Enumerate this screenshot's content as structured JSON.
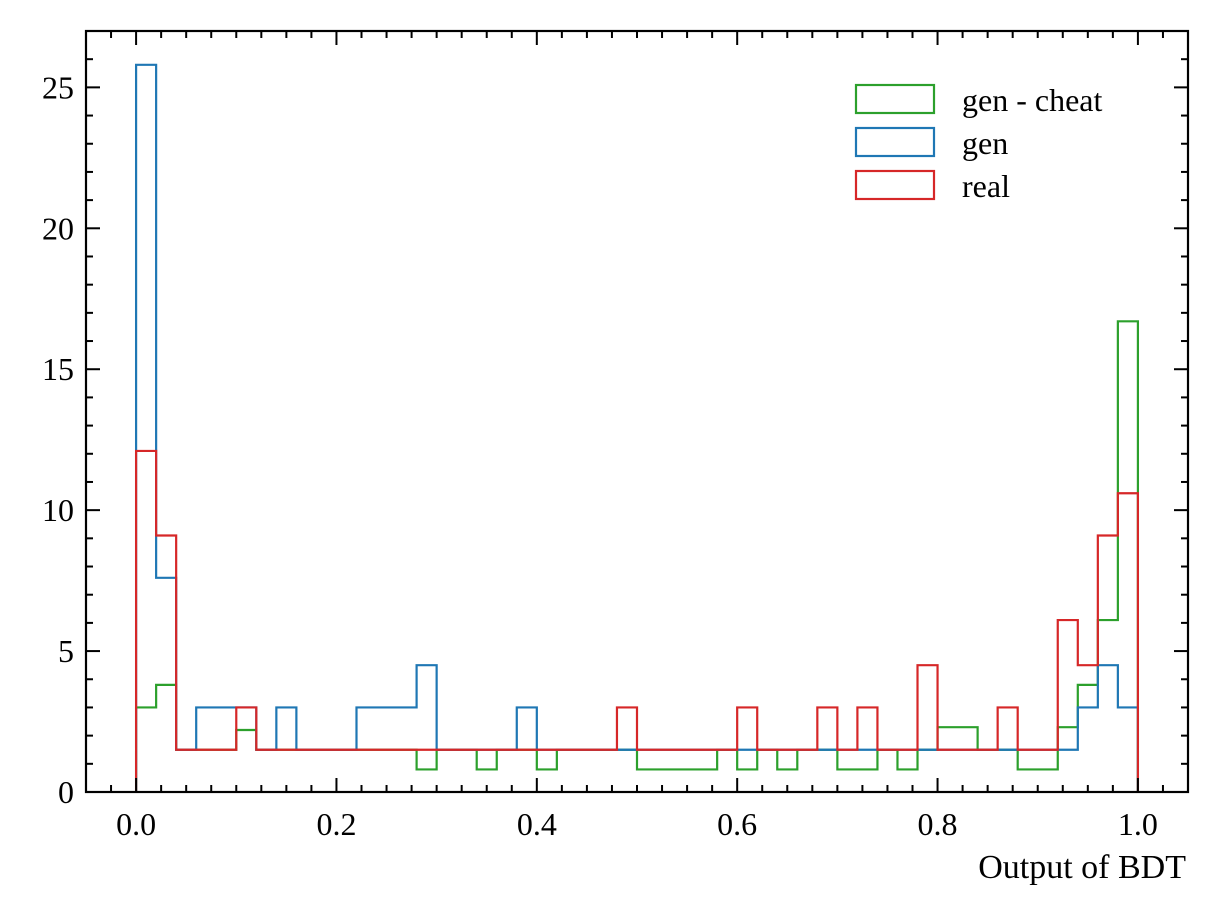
{
  "chart_data": {
    "type": "histogram",
    "title": "",
    "xlabel": "Output of BDT",
    "ylabel": "",
    "xlim": [
      -0.05,
      1.05
    ],
    "ylim": [
      0,
      27
    ],
    "xticks": [
      "0.0",
      "0.2",
      "0.4",
      "0.6",
      "0.8",
      "1.0"
    ],
    "yticks": [
      "0",
      "5",
      "10",
      "15",
      "20",
      "25"
    ],
    "grid": false,
    "legend_position": "top-right",
    "bin_edges": [
      0.0,
      0.02,
      0.04,
      0.06,
      0.08,
      0.1,
      0.12,
      0.14,
      0.16,
      0.18,
      0.2,
      0.22,
      0.24,
      0.26,
      0.28,
      0.3,
      0.32,
      0.34,
      0.36,
      0.38,
      0.4,
      0.42,
      0.44,
      0.46,
      0.48,
      0.5,
      0.52,
      0.54,
      0.56,
      0.58,
      0.6,
      0.62,
      0.64,
      0.66,
      0.68,
      0.7,
      0.72,
      0.74,
      0.76,
      0.78,
      0.8,
      0.82,
      0.84,
      0.86,
      0.88,
      0.9,
      0.92,
      0.94,
      0.96,
      0.98,
      1.0
    ],
    "series": [
      {
        "name": "gen - cheat",
        "color": "#2ca02c",
        "values": [
          3.0,
          3.8,
          1.5,
          1.5,
          1.5,
          2.2,
          1.5,
          1.5,
          1.5,
          1.5,
          1.5,
          1.5,
          1.5,
          1.5,
          0.8,
          1.5,
          1.5,
          0.8,
          1.5,
          1.5,
          0.8,
          1.5,
          1.5,
          1.5,
          1.5,
          0.8,
          0.8,
          0.8,
          0.8,
          1.5,
          0.8,
          1.5,
          0.8,
          1.5,
          1.5,
          0.8,
          0.8,
          1.5,
          0.8,
          1.5,
          2.3,
          2.3,
          1.5,
          1.5,
          0.8,
          0.8,
          2.3,
          3.8,
          6.1,
          16.7
        ]
      },
      {
        "name": "gen",
        "color": "#1f77b4",
        "values": [
          25.8,
          7.6,
          1.5,
          3.0,
          3.0,
          3.0,
          1.5,
          3.0,
          1.5,
          1.5,
          1.5,
          3.0,
          3.0,
          3.0,
          4.5,
          1.5,
          1.5,
          1.5,
          1.5,
          3.0,
          1.5,
          1.5,
          1.5,
          1.5,
          1.5,
          1.5,
          1.5,
          1.5,
          1.5,
          1.5,
          1.5,
          1.5,
          1.5,
          1.5,
          1.5,
          1.5,
          1.5,
          1.5,
          1.5,
          1.5,
          1.5,
          1.5,
          1.5,
          1.5,
          1.5,
          1.5,
          1.5,
          3.0,
          4.5,
          3.0
        ]
      },
      {
        "name": "real",
        "color": "#d62728",
        "values": [
          12.1,
          9.1,
          1.5,
          1.5,
          1.5,
          3.0,
          1.5,
          1.5,
          1.5,
          1.5,
          1.5,
          1.5,
          1.5,
          1.5,
          1.5,
          1.5,
          1.5,
          1.5,
          1.5,
          1.5,
          1.5,
          1.5,
          1.5,
          1.5,
          3.0,
          1.5,
          1.5,
          1.5,
          1.5,
          1.5,
          3.0,
          1.5,
          1.5,
          1.5,
          3.0,
          1.5,
          3.0,
          1.5,
          1.5,
          4.5,
          1.5,
          1.5,
          1.5,
          3.0,
          1.5,
          1.5,
          6.1,
          4.5,
          9.1,
          10.6
        ]
      }
    ]
  }
}
